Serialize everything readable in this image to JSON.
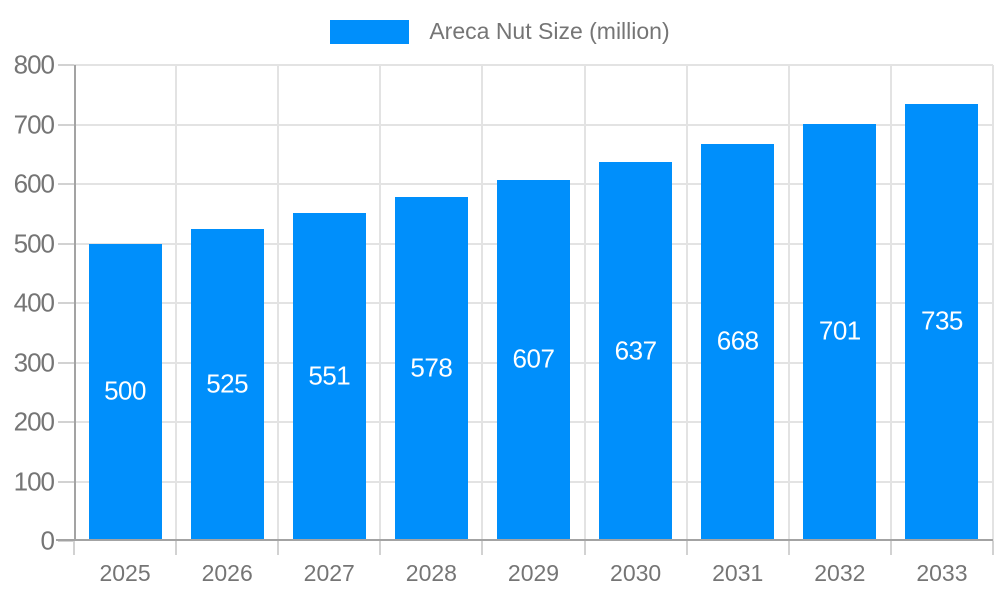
{
  "chart_data": {
    "type": "bar",
    "title": "",
    "legend": {
      "label": "Areca Nut Size (million)",
      "position": "top"
    },
    "categories": [
      "2025",
      "2026",
      "2027",
      "2028",
      "2029",
      "2030",
      "2031",
      "2032",
      "2033"
    ],
    "series": [
      {
        "name": "Areca Nut Size (million)",
        "values": [
          500,
          525,
          551,
          578,
          607,
          637,
          668,
          701,
          735
        ]
      }
    ],
    "value_labels_shown": true,
    "xlabel": "",
    "ylabel": "",
    "ylim": [
      0,
      800
    ],
    "y_ticks": [
      0,
      100,
      200,
      300,
      400,
      500,
      600,
      700,
      800
    ],
    "grid": true,
    "colors": {
      "bar": "#008ffb",
      "axis_label": "#757575",
      "value_label": "#ffffff",
      "grid_line": "#e3e3e3",
      "axis_line": "#a3a3a3",
      "background": "#ffffff"
    }
  }
}
